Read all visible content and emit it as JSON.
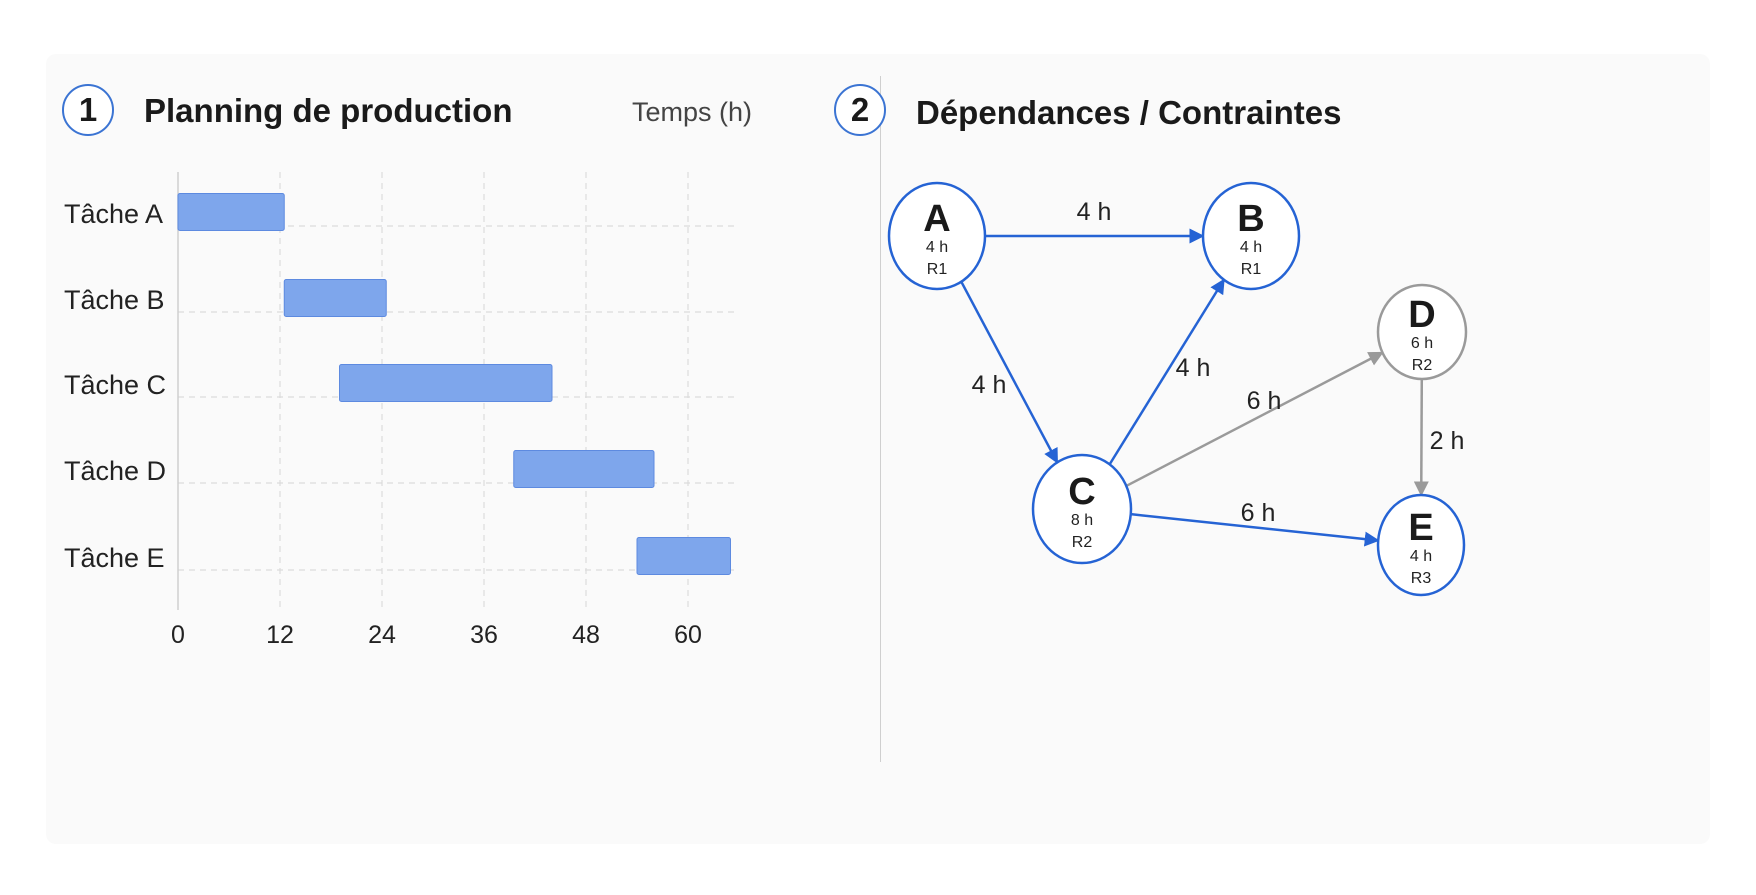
{
  "panels": {
    "left": {
      "number": "1",
      "title": "Planning de production",
      "unit_label": "Temps (h)"
    },
    "right": {
      "number": "2",
      "title": "Dépendances / Contraintes"
    }
  },
  "colors": {
    "bar": "#7ea6ec",
    "bar_border": "#5d8ae0",
    "blue": "#2563d4",
    "gray": "#9a9a9a",
    "grid": "#dcdcdc"
  },
  "chart_data": [
    {
      "type": "bar",
      "orientation": "horizontal-gantt",
      "title": "Planning de production",
      "xlabel": "Temps (h)",
      "ylabel": "",
      "categories": [
        "Tâche A",
        "Tâche B",
        "Tâche C",
        "Tâche D",
        "Tâche E"
      ],
      "series": [
        {
          "name": "start",
          "values": [
            0,
            12.5,
            19,
            39.5,
            54
          ]
        },
        {
          "name": "end",
          "values": [
            12.5,
            24.5,
            44,
            56,
            65
          ]
        }
      ],
      "xticks": [
        0,
        12,
        24,
        36,
        48,
        60
      ],
      "xlim": [
        0,
        66
      ],
      "grid": true,
      "legend": "none"
    },
    {
      "type": "graph",
      "title": "Dépendances / Contraintes",
      "nodes": [
        {
          "id": "A",
          "letter": "A",
          "duration": "4 h",
          "resource": "R1",
          "style": "blue"
        },
        {
          "id": "B",
          "letter": "B",
          "duration": "4 h",
          "resource": "R1",
          "style": "blue"
        },
        {
          "id": "C",
          "letter": "C",
          "duration": "8 h",
          "resource": "R2",
          "style": "blue"
        },
        {
          "id": "D",
          "letter": "D",
          "duration": "6 h",
          "resource": "R2",
          "style": "gray"
        },
        {
          "id": "E",
          "letter": "E",
          "duration": "4 h",
          "resource": "R3",
          "style": "blue"
        }
      ],
      "edges": [
        {
          "from": "A",
          "to": "B",
          "label": "4 h",
          "style": "blue"
        },
        {
          "from": "A",
          "to": "C",
          "label": "4 h",
          "style": "blue"
        },
        {
          "from": "C",
          "to": "B",
          "label": "4 h",
          "style": "blue"
        },
        {
          "from": "C",
          "to": "D",
          "label": "6 h",
          "style": "gray"
        },
        {
          "from": "C",
          "to": "E",
          "label": "6 h",
          "style": "blue"
        },
        {
          "from": "D",
          "to": "E",
          "label": "2 h",
          "style": "gray"
        }
      ]
    }
  ]
}
